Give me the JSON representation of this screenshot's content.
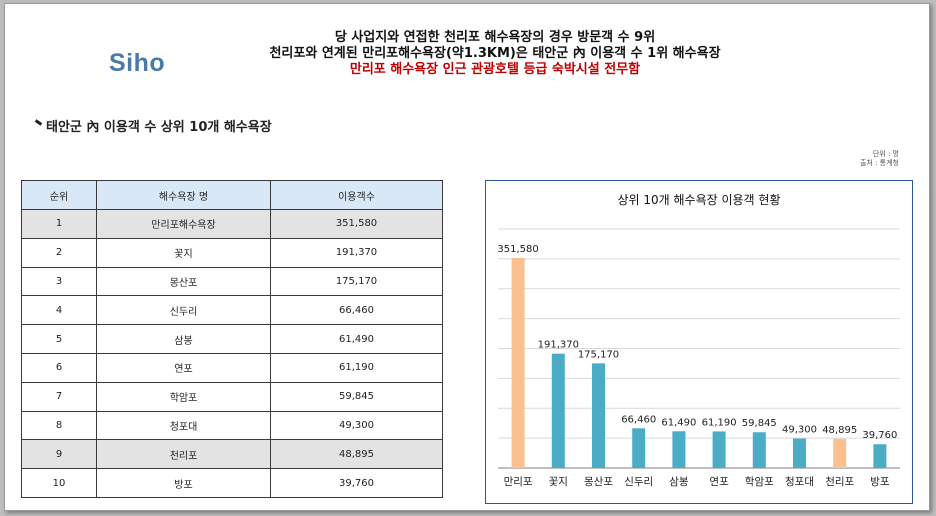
{
  "logo": "Siho",
  "headline": {
    "line1": "당 사업지와 연접한 천리포 해수욕장의 경우 방문객 수 9위",
    "line2": "천리포와 연계된 만리포해수욕장(약1.3KM)은 태안군 內 이용객 수 1위 해수욕장",
    "line3": "만리포 해수욕장 인근 관광호텔 등급 숙박시설 전무함"
  },
  "section_title": "태안군 內 이용객 수 상위 10개 해수욕장",
  "source": {
    "unit": "단위 : 명",
    "origin": "출처 : 통계청"
  },
  "table": {
    "headers": [
      "순위",
      "해수욕장 명",
      "이용객수"
    ],
    "rows": [
      {
        "rank": "1",
        "name": "만리포해수욕장",
        "visitors": "351,580",
        "highlight": true
      },
      {
        "rank": "2",
        "name": "꽃지",
        "visitors": "191,370",
        "highlight": false
      },
      {
        "rank": "3",
        "name": "몽산포",
        "visitors": "175,170",
        "highlight": false
      },
      {
        "rank": "4",
        "name": "신두리",
        "visitors": "66,460",
        "highlight": false
      },
      {
        "rank": "5",
        "name": "삼봉",
        "visitors": "61,490",
        "highlight": false
      },
      {
        "rank": "6",
        "name": "연포",
        "visitors": "61,190",
        "highlight": false
      },
      {
        "rank": "7",
        "name": "학암포",
        "visitors": "59,845",
        "highlight": false
      },
      {
        "rank": "8",
        "name": "청포대",
        "visitors": "49,300",
        "highlight": false
      },
      {
        "rank": "9",
        "name": "천리포",
        "visitors": "48,895",
        "highlight": true
      },
      {
        "rank": "10",
        "name": "방포",
        "visitors": "39,760",
        "highlight": false
      }
    ]
  },
  "chart_data": {
    "type": "bar",
    "title": "상위 10개 해수욕장 이용객 현황",
    "categories": [
      "만리포",
      "꽃지",
      "몽산포",
      "신두리",
      "삼봉",
      "연포",
      "학암포",
      "청포대",
      "천리포",
      "방포"
    ],
    "values": [
      351580,
      191370,
      175170,
      66460,
      61490,
      61190,
      59845,
      49300,
      48895,
      39760
    ],
    "value_labels": [
      "351,580",
      "191,370",
      "175,170",
      "66,460",
      "61,490",
      "61,190",
      "59,845",
      "49,300",
      "48,895",
      "39,760"
    ],
    "highlighted_categories": [
      "만리포",
      "천리포"
    ],
    "ylim": [
      0,
      400000
    ],
    "grid": true,
    "legend": "none",
    "colors": {
      "default": "#4bacc6",
      "highlight": "#fac090",
      "grid": "#d9d9d9",
      "axis": "#7f7f7f"
    }
  }
}
